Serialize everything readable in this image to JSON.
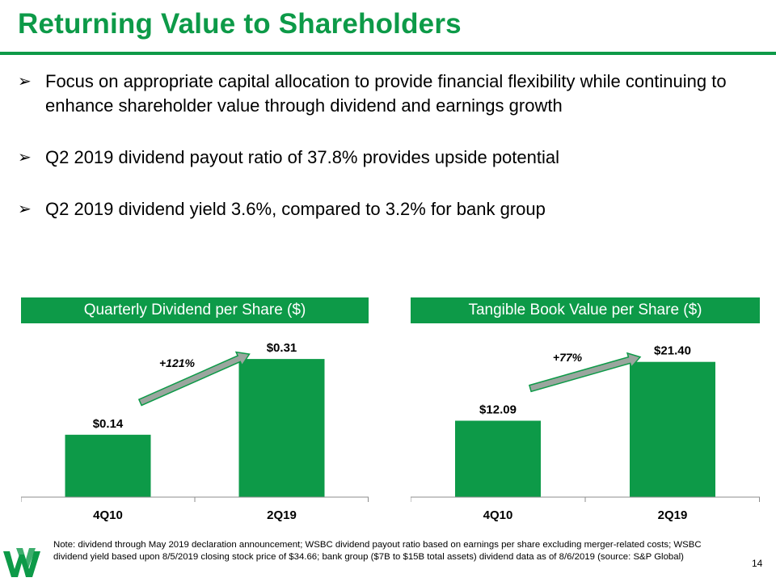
{
  "title": "Returning Value to Shareholders",
  "bullets": [
    "Focus on appropriate capital allocation to provide financial flexibility while continuing to enhance shareholder value through dividend and earnings growth",
    "Q2 2019 dividend payout ratio of 37.8% provides upside potential",
    "Q2 2019 dividend yield 3.6%, compared to 3.2% for bank group"
  ],
  "bullet_glyph": "➢",
  "colors": {
    "accent": "#0d9a48",
    "arrow": "#9aa69e"
  },
  "chart_data": [
    {
      "type": "bar",
      "title": "Quarterly Dividend per Share ($)",
      "categories": [
        "4Q10",
        "2Q19"
      ],
      "values": [
        0.14,
        0.31
      ],
      "data_labels": [
        "$0.14",
        "$0.31"
      ],
      "ylim": [
        0,
        0.39
      ],
      "growth_label": "+121%",
      "xlabel": "",
      "ylabel": ""
    },
    {
      "type": "bar",
      "title": "Tangible Book Value per Share ($)",
      "categories": [
        "4Q10",
        "2Q19"
      ],
      "values": [
        12.09,
        21.4
      ],
      "data_labels": [
        "$12.09",
        "$21.40"
      ],
      "ylim": [
        0,
        27.5
      ],
      "growth_label": "+77%",
      "xlabel": "",
      "ylabel": ""
    }
  ],
  "note": "Note: dividend through May 2019 declaration announcement; WSBC dividend payout ratio based on earnings per share excluding merger-related costs; WSBC dividend yield based upon 8/5/2019 closing stock price of $34.66; bank group ($7B to $15B total assets) dividend data as of 8/6/2019 (source: S&P Global)",
  "page_number": "14"
}
